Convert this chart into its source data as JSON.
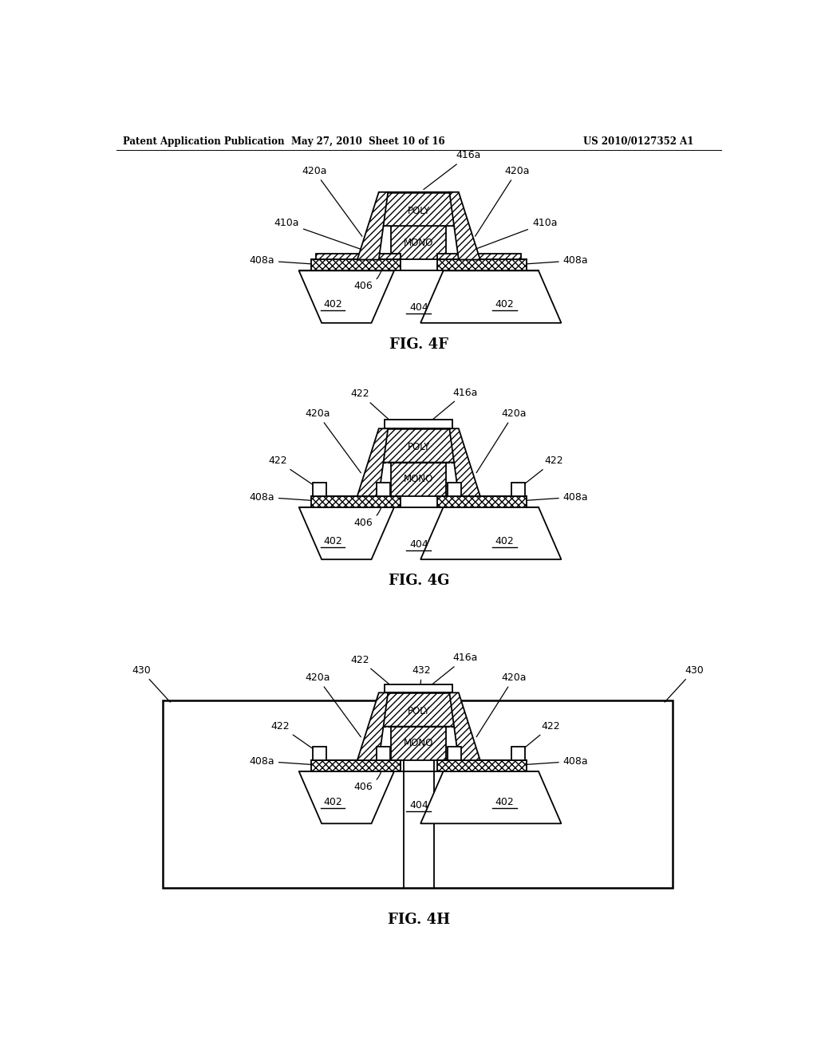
{
  "title_left": "Patent Application Publication",
  "title_mid": "May 27, 2010  Sheet 10 of 16",
  "title_right": "US 2010/0127352 A1",
  "fig4f_label": "FIG. 4F",
  "fig4g_label": "FIG. 4G",
  "fig4h_label": "FIG. 4H",
  "bg_color": "#ffffff",
  "line_color": "#000000"
}
